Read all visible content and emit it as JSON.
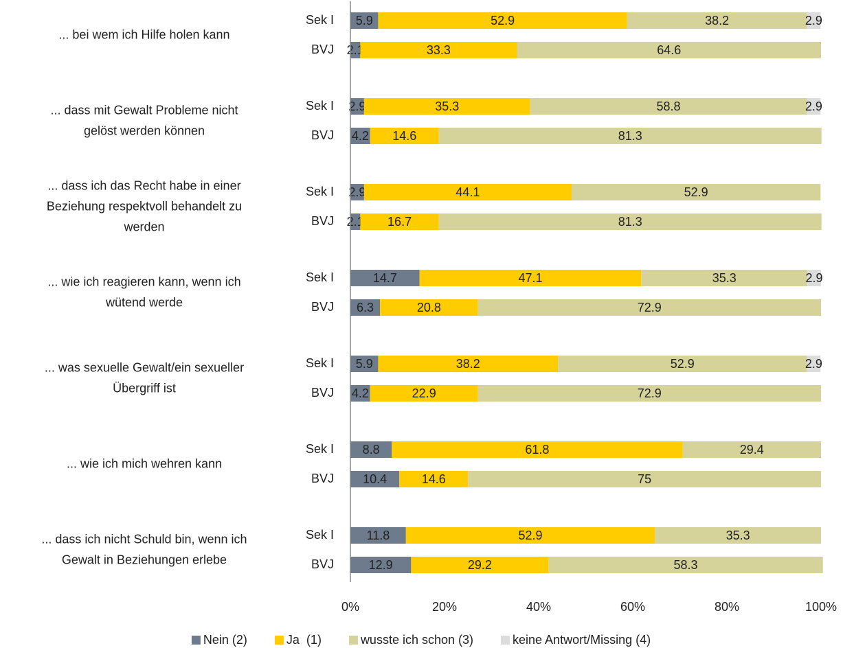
{
  "chart_data": {
    "type": "stacked_barh",
    "groups": [
      [
        "... bei wem ich Hilfe holen kann"
      ],
      [
        "... dass mit Gewalt Probleme nicht",
        "gelöst werden können"
      ],
      [
        "... dass ich das Recht habe in einer",
        "Beziehung respektvoll behandelt zu",
        "werden"
      ],
      [
        "... wie ich reagieren kann, wenn ich",
        "wütend werde"
      ],
      [
        "... was sexuelle Gewalt/ein sexueller",
        "Übergriff ist"
      ],
      [
        "... wie ich mich wehren kann"
      ],
      [
        "... dass ich nicht Schuld bin, wenn ich",
        "Gewalt in Beziehungen erlebe"
      ]
    ],
    "categories": [
      "Sek I",
      "BVJ",
      "Sek I",
      "BVJ",
      "Sek I",
      "BVJ",
      "Sek I",
      "BVJ",
      "Sek I",
      "BVJ",
      "Sek I",
      "BVJ",
      "Sek I",
      "BVJ"
    ],
    "series": [
      {
        "name": "Nein (2)",
        "color": "#6d7b8d",
        "values": [
          5.9,
          2.1,
          2.9,
          4.2,
          2.9,
          2.1,
          14.7,
          6.3,
          5.9,
          4.2,
          8.8,
          10.4,
          11.8,
          12.9
        ]
      },
      {
        "name": "Ja  (1)",
        "color": "#ffcc00",
        "values": [
          52.9,
          33.3,
          35.3,
          14.6,
          44.1,
          16.7,
          47.1,
          20.8,
          38.2,
          22.9,
          61.8,
          14.6,
          52.9,
          29.2
        ]
      },
      {
        "name": "wusste ich schon (3)",
        "color": "#d6d39a",
        "values": [
          38.2,
          64.6,
          58.8,
          81.3,
          52.9,
          81.3,
          35.3,
          72.9,
          52.9,
          72.9,
          29.4,
          75,
          35.3,
          58.3
        ]
      },
      {
        "name": "keine Antwort/Missing (4)",
        "color": "#dcdcdc",
        "values": [
          2.9,
          null,
          2.9,
          null,
          null,
          null,
          2.9,
          null,
          2.9,
          null,
          null,
          null,
          null,
          null
        ]
      }
    ],
    "xlim": [
      0,
      100
    ],
    "xticks": [
      {
        "value": 0,
        "label": "0%"
      },
      {
        "value": 20,
        "label": "20%"
      },
      {
        "value": 40,
        "label": "40%"
      },
      {
        "value": 60,
        "label": "60%"
      },
      {
        "value": 80,
        "label": "80%"
      },
      {
        "value": 100,
        "label": "100%"
      }
    ],
    "legend": "bottom"
  }
}
